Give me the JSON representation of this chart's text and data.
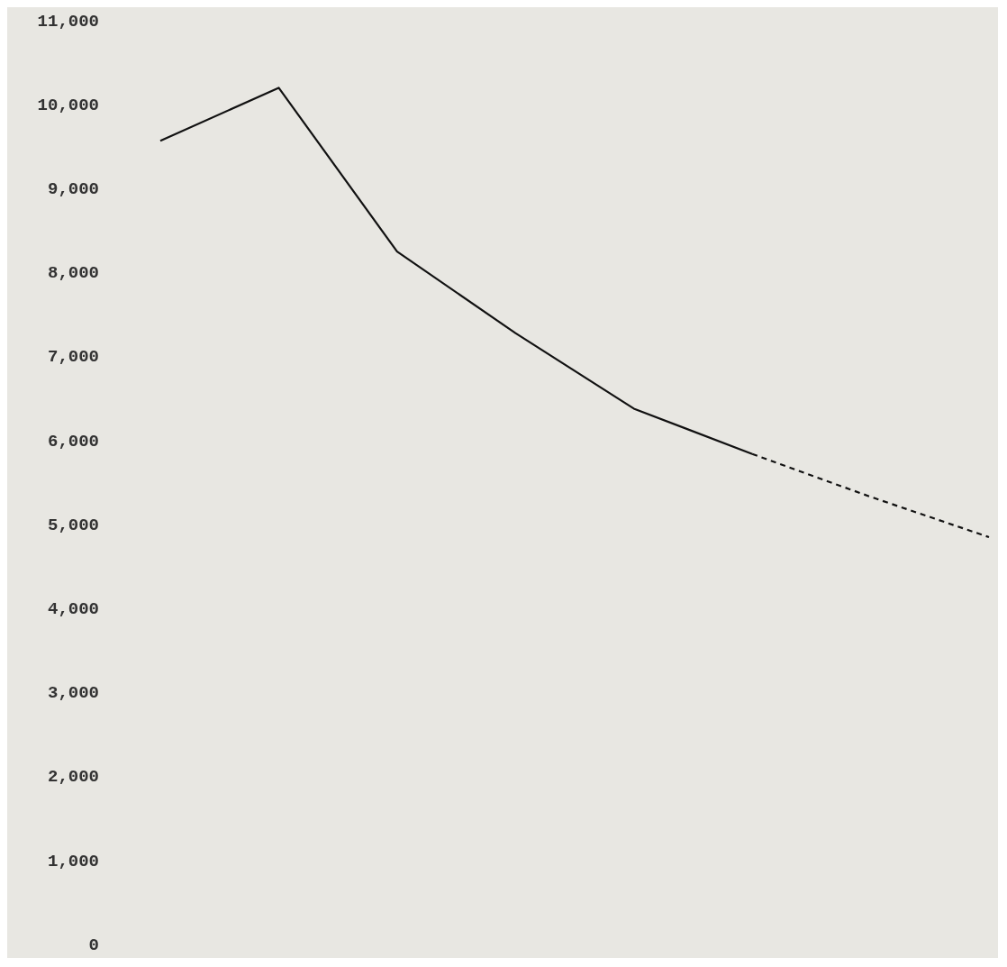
{
  "chart_data": {
    "type": "line",
    "categories": [
      null,
      null,
      null,
      null,
      null,
      null,
      null,
      null
    ],
    "series": [
      {
        "color": "#111111",
        "values": [
          9560,
          10190,
          8240,
          7270,
          6370,
          5830,
          null,
          null
        ],
        "line_style": "solid"
      },
      {
        "color": "#111111",
        "values": [
          null,
          null,
          null,
          null,
          null,
          5830,
          5320,
          4840
        ],
        "line_style": "dashed"
      }
    ],
    "ylim": [
      0,
      11000
    ],
    "yticks": [
      {
        "value": 0,
        "label": "0"
      },
      {
        "value": 1000,
        "label": "1,000"
      },
      {
        "value": 2000,
        "label": "2,000"
      },
      {
        "value": 3000,
        "label": "3,000"
      },
      {
        "value": 4000,
        "label": "4,000"
      },
      {
        "value": 5000,
        "label": "5,000"
      },
      {
        "value": 6000,
        "label": "6,000"
      },
      {
        "value": 7000,
        "label": "7,000"
      },
      {
        "value": 8000,
        "label": "8,000"
      },
      {
        "value": 9000,
        "label": "9,000"
      },
      {
        "value": 10000,
        "label": "10,000"
      },
      {
        "value": 11000,
        "label": "11,000"
      }
    ],
    "tick_labels": "y",
    "marker": "none",
    "grid": false
  }
}
